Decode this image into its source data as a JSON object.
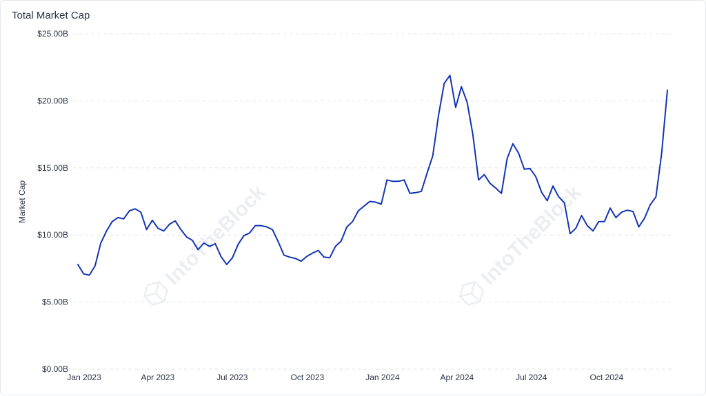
{
  "header": {
    "title": "Total Market Cap"
  },
  "watermark": "IntoTheBlock",
  "colors": {
    "line": "#1233b5",
    "grid": "#e3e6ec",
    "text": "#2c3345"
  },
  "chart_data": {
    "type": "line",
    "title": "Total Market Cap",
    "xlabel": "",
    "ylabel": "Market Cap",
    "ylim": [
      0,
      25
    ],
    "y_ticks": [
      "$0.00B",
      "$5.00B",
      "$10.00B",
      "$15.00B",
      "$20.00B",
      "$25.00B"
    ],
    "x_ticks": [
      "Jan 2023",
      "Apr 2023",
      "Jul 2023",
      "Oct 2023",
      "Jan 2024",
      "Apr 2024",
      "Jul 2024",
      "Oct 2024"
    ],
    "x_range": [
      "2022-12-26",
      "2024-12-16"
    ],
    "grid": true,
    "series": [
      {
        "name": "",
        "unit": "$B",
        "points": [
          [
            "2022-12-26",
            7.8
          ],
          [
            "2023-01-02",
            7.1
          ],
          [
            "2023-01-09",
            7.0
          ],
          [
            "2023-01-16",
            7.7
          ],
          [
            "2023-01-23",
            9.4
          ],
          [
            "2023-01-30",
            10.3
          ],
          [
            "2023-02-06",
            11.0
          ],
          [
            "2023-02-13",
            11.3
          ],
          [
            "2023-02-20",
            11.2
          ],
          [
            "2023-02-27",
            11.8
          ],
          [
            "2023-03-06",
            11.95
          ],
          [
            "2023-03-13",
            11.7
          ],
          [
            "2023-03-20",
            10.4
          ],
          [
            "2023-03-27",
            11.1
          ],
          [
            "2023-04-03",
            10.5
          ],
          [
            "2023-04-10",
            10.3
          ],
          [
            "2023-04-17",
            10.8
          ],
          [
            "2023-04-24",
            11.05
          ],
          [
            "2023-05-01",
            10.4
          ],
          [
            "2023-05-08",
            9.85
          ],
          [
            "2023-05-15",
            9.6
          ],
          [
            "2023-05-22",
            8.9
          ],
          [
            "2023-05-29",
            9.4
          ],
          [
            "2023-06-05",
            9.15
          ],
          [
            "2023-06-12",
            9.35
          ],
          [
            "2023-06-19",
            8.4
          ],
          [
            "2023-06-26",
            7.8
          ],
          [
            "2023-07-03",
            8.3
          ],
          [
            "2023-07-10",
            9.3
          ],
          [
            "2023-07-17",
            9.95
          ],
          [
            "2023-07-24",
            10.15
          ],
          [
            "2023-07-31",
            10.7
          ],
          [
            "2023-08-07",
            10.7
          ],
          [
            "2023-08-14",
            10.6
          ],
          [
            "2023-08-21",
            10.4
          ],
          [
            "2023-08-28",
            9.5
          ],
          [
            "2023-09-04",
            8.5
          ],
          [
            "2023-09-11",
            8.35
          ],
          [
            "2023-09-18",
            8.25
          ],
          [
            "2023-09-25",
            8.05
          ],
          [
            "2023-10-02",
            8.4
          ],
          [
            "2023-10-09",
            8.65
          ],
          [
            "2023-10-16",
            8.85
          ],
          [
            "2023-10-23",
            8.35
          ],
          [
            "2023-10-30",
            8.3
          ],
          [
            "2023-11-06",
            9.15
          ],
          [
            "2023-11-13",
            9.55
          ],
          [
            "2023-11-20",
            10.6
          ],
          [
            "2023-11-27",
            11.0
          ],
          [
            "2023-12-04",
            11.8
          ],
          [
            "2023-12-11",
            12.15
          ],
          [
            "2023-12-18",
            12.5
          ],
          [
            "2023-12-25",
            12.45
          ],
          [
            "2024-01-01",
            12.3
          ],
          [
            "2024-01-08",
            14.1
          ],
          [
            "2024-01-15",
            14.0
          ],
          [
            "2024-01-22",
            14.0
          ],
          [
            "2024-01-29",
            14.1
          ],
          [
            "2024-02-05",
            13.1
          ],
          [
            "2024-02-12",
            13.15
          ],
          [
            "2024-02-19",
            13.25
          ],
          [
            "2024-02-26",
            14.6
          ],
          [
            "2024-03-04",
            15.9
          ],
          [
            "2024-03-11",
            18.9
          ],
          [
            "2024-03-18",
            21.3
          ],
          [
            "2024-03-25",
            21.9
          ],
          [
            "2024-04-01",
            19.5
          ],
          [
            "2024-04-08",
            21.05
          ],
          [
            "2024-04-15",
            19.9
          ],
          [
            "2024-04-22",
            17.5
          ],
          [
            "2024-04-29",
            14.1
          ],
          [
            "2024-05-06",
            14.5
          ],
          [
            "2024-05-13",
            13.85
          ],
          [
            "2024-05-20",
            13.5
          ],
          [
            "2024-05-27",
            13.1
          ],
          [
            "2024-06-03",
            15.7
          ],
          [
            "2024-06-10",
            16.8
          ],
          [
            "2024-06-17",
            16.1
          ],
          [
            "2024-06-24",
            14.9
          ],
          [
            "2024-07-01",
            14.95
          ],
          [
            "2024-07-08",
            14.35
          ],
          [
            "2024-07-15",
            13.2
          ],
          [
            "2024-07-22",
            12.55
          ],
          [
            "2024-07-29",
            13.65
          ],
          [
            "2024-08-05",
            12.85
          ],
          [
            "2024-08-12",
            12.4
          ],
          [
            "2024-08-19",
            10.1
          ],
          [
            "2024-08-26",
            10.5
          ],
          [
            "2024-09-02",
            11.45
          ],
          [
            "2024-09-09",
            10.7
          ],
          [
            "2024-09-16",
            10.3
          ],
          [
            "2024-09-23",
            11.0
          ],
          [
            "2024-09-30",
            11.0
          ],
          [
            "2024-10-07",
            12.0
          ],
          [
            "2024-10-14",
            11.3
          ],
          [
            "2024-10-21",
            11.7
          ],
          [
            "2024-10-28",
            11.85
          ],
          [
            "2024-11-04",
            11.75
          ],
          [
            "2024-11-11",
            10.6
          ],
          [
            "2024-11-18",
            11.25
          ],
          [
            "2024-11-25",
            12.25
          ],
          [
            "2024-12-02",
            12.85
          ],
          [
            "2024-12-09",
            16.1
          ],
          [
            "2024-12-16",
            20.8
          ]
        ]
      }
    ]
  }
}
